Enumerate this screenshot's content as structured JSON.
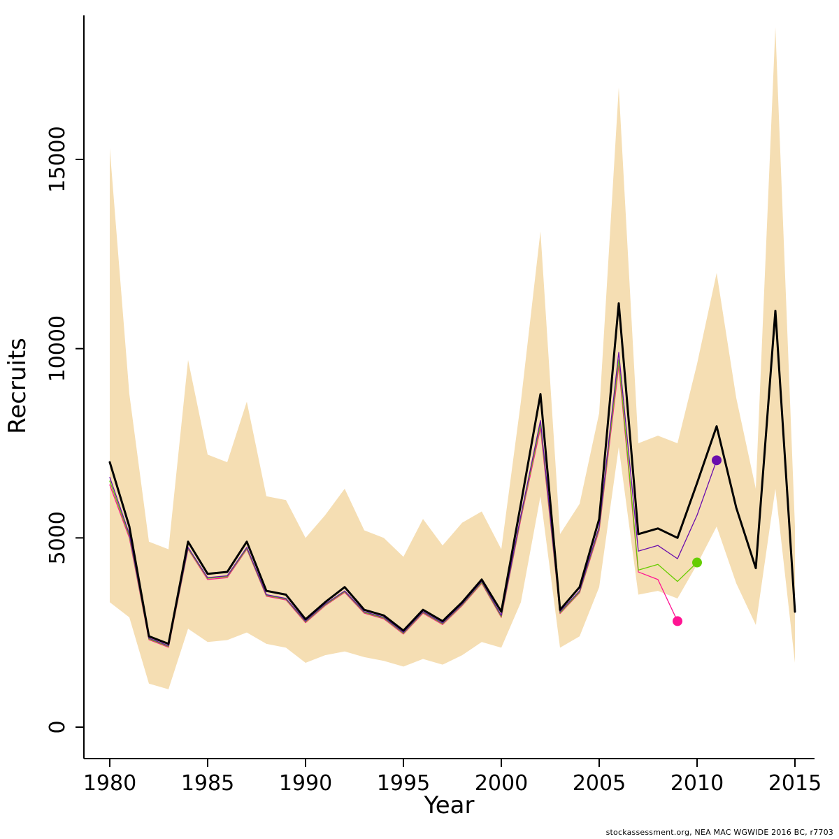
{
  "caption": "stockassessment.org, NEA MAC WGWIDE 2016 BC, r7703",
  "chart_data": {
    "type": "line",
    "title": "",
    "xlabel": "Year",
    "ylabel": "Recruits",
    "xlim": [
      1978.7,
      2016.0
    ],
    "ylim": [
      0,
      18800
    ],
    "grid": false,
    "legend": "none",
    "x_ticks": [
      1980,
      1985,
      1990,
      1995,
      2000,
      2005,
      2010,
      2015
    ],
    "y_ticks": [
      0,
      5000,
      10000,
      15000
    ],
    "years": [
      1980,
      1981,
      1982,
      1983,
      1984,
      1985,
      1986,
      1987,
      1988,
      1989,
      1990,
      1991,
      1992,
      1993,
      1994,
      1995,
      1996,
      1997,
      1998,
      1999,
      2000,
      2001,
      2002,
      2003,
      2004,
      2005,
      2006,
      2007,
      2008,
      2009,
      2010,
      2011,
      2012,
      2013,
      2014,
      2015
    ],
    "band": {
      "name": "confidence-interval",
      "color": "#f5deb3",
      "upper": [
        15300,
        8800,
        4900,
        4700,
        9700,
        7200,
        7000,
        8600,
        6100,
        6000,
        5000,
        5600,
        6300,
        5200,
        5000,
        4500,
        5500,
        4800,
        5400,
        5700,
        4700,
        8600,
        13100,
        5100,
        5900,
        8300,
        16900,
        7500,
        7700,
        7500,
        9600,
        12000,
        8700,
        6300,
        18500,
        5300
      ],
      "lower": [
        3300,
        2900,
        1150,
        1000,
        2600,
        2250,
        2300,
        2500,
        2200,
        2100,
        1700,
        1900,
        2000,
        1850,
        1750,
        1600,
        1800,
        1650,
        1900,
        2250,
        2100,
        3300,
        6100,
        2100,
        2400,
        3700,
        7400,
        3500,
        3600,
        3400,
        4300,
        5300,
        3800,
        2700,
        6300,
        1700
      ]
    },
    "series": [
      {
        "name": "retro-peel-2009",
        "color": "#ff1493",
        "width": 1.3,
        "start_year": 1980,
        "end_dot": true,
        "values": [
          6400,
          5000,
          2310,
          2110,
          4700,
          3900,
          3950,
          4700,
          3460,
          3360,
          2760,
          3210,
          3560,
          3010,
          2860,
          2460,
          3010,
          2710,
          3210,
          3800,
          2900,
          5500,
          7900,
          3000,
          3550,
          5200,
          9550,
          4100,
          3900,
          2800
        ]
      },
      {
        "name": "retro-peel-2010",
        "color": "#66cd00",
        "width": 1.3,
        "start_year": 1980,
        "end_dot": true,
        "values": [
          6500,
          5050,
          2330,
          2130,
          4720,
          3930,
          3980,
          4720,
          3480,
          3380,
          2780,
          3230,
          3580,
          3030,
          2880,
          2480,
          3030,
          2730,
          3230,
          3820,
          2920,
          5550,
          8000,
          3020,
          3570,
          5250,
          9700,
          4150,
          4300,
          3850,
          4350
        ]
      },
      {
        "name": "retro-peel-2011",
        "color": "#6a0dad",
        "width": 1.3,
        "start_year": 1980,
        "end_dot": true,
        "values": [
          6600,
          5100,
          2350,
          2150,
          4750,
          3950,
          4000,
          4750,
          3500,
          3400,
          2800,
          3250,
          3600,
          3050,
          2900,
          2500,
          3050,
          2750,
          3250,
          3850,
          2950,
          5600,
          8100,
          3050,
          3600,
          5300,
          9900,
          4650,
          4800,
          4450,
          5600,
          7050
        ]
      },
      {
        "name": "final-assessment",
        "color": "#000000",
        "width": 3,
        "start_year": 1980,
        "end_dot": false,
        "values": [
          7000,
          5300,
          2400,
          2200,
          4900,
          4050,
          4100,
          4900,
          3600,
          3500,
          2850,
          3300,
          3700,
          3100,
          2950,
          2550,
          3100,
          2800,
          3300,
          3900,
          3050,
          5900,
          8800,
          3100,
          3700,
          5500,
          11200,
          5100,
          5250,
          5000,
          6450,
          7950,
          5800,
          4200,
          11000,
          3050
        ]
      }
    ]
  }
}
